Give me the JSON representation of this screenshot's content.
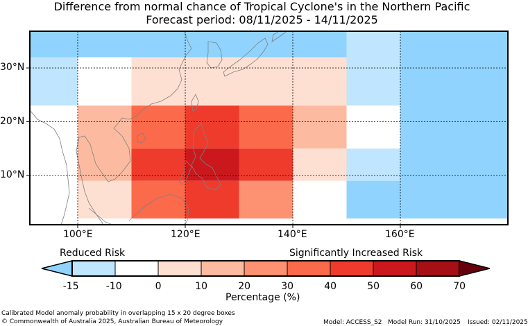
{
  "title_line1": "Difference from normal chance of Tropical Cyclone's in the Northern Pacific",
  "title_line2": "Forecast period: 08/11/2025 - 14/11/2025",
  "lat_labels": [
    "30°N",
    "20°N",
    "10°N"
  ],
  "lon_labels": [
    "100°E",
    "120°E",
    "140°E",
    "160°E"
  ],
  "legend": {
    "reduced_label": "Reduced Risk",
    "increased_label": "Significantly Increased Risk",
    "ticks": [
      "-15",
      "-10",
      "0",
      "10",
      "20",
      "30",
      "40",
      "50",
      "60",
      "70"
    ],
    "xlabel": "Percentage (%)",
    "colors": [
      "#8fd3fe",
      "#c0e5fe",
      "#ffffff",
      "#fee0d2",
      "#fcbba1",
      "#fc9272",
      "#fb6a4a",
      "#ef3b2c",
      "#cb181d",
      "#a50f15",
      "#67000d"
    ]
  },
  "grid_cells": [
    {
      "lon": [
        90,
        150
      ],
      "lat": [
        32,
        37
      ],
      "value": -15
    },
    {
      "lon": [
        90,
        100
      ],
      "lat": [
        23,
        32
      ],
      "value": -10
    },
    {
      "lon": [
        100,
        110
      ],
      "lat": [
        23,
        32
      ],
      "value": 0
    },
    {
      "lon": [
        110,
        150
      ],
      "lat": [
        23,
        32
      ],
      "value": 5
    },
    {
      "lon": [
        90,
        100
      ],
      "lat": [
        2,
        23
      ],
      "value": 0
    },
    {
      "lon": [
        100,
        110
      ],
      "lat": [
        9,
        23
      ],
      "value": 15
    },
    {
      "lon": [
        100,
        110
      ],
      "lat": [
        2,
        9
      ],
      "value": 5
    },
    {
      "lon": [
        110,
        120
      ],
      "lat": [
        15,
        23
      ],
      "value": 35
    },
    {
      "lon": [
        120,
        130
      ],
      "lat": [
        15,
        23
      ],
      "value": 45
    },
    {
      "lon": [
        130,
        140
      ],
      "lat": [
        15,
        23
      ],
      "value": 35
    },
    {
      "lon": [
        140,
        150
      ],
      "lat": [
        15,
        23
      ],
      "value": 15
    },
    {
      "lon": [
        110,
        120
      ],
      "lat": [
        9,
        15
      ],
      "value": 45
    },
    {
      "lon": [
        120,
        130
      ],
      "lat": [
        9,
        15
      ],
      "value": 55
    },
    {
      "lon": [
        130,
        140
      ],
      "lat": [
        9,
        15
      ],
      "value": 45
    },
    {
      "lon": [
        140,
        150
      ],
      "lat": [
        9,
        15
      ],
      "value": 5
    },
    {
      "lon": [
        110,
        120
      ],
      "lat": [
        2,
        9
      ],
      "value": 35
    },
    {
      "lon": [
        120,
        130
      ],
      "lat": [
        2,
        9
      ],
      "value": 45
    },
    {
      "lon": [
        130,
        140
      ],
      "lat": [
        2,
        9
      ],
      "value": 25
    },
    {
      "lon": [
        140,
        150
      ],
      "lat": [
        2,
        9
      ],
      "value": 0
    },
    {
      "lon": [
        150,
        160
      ],
      "lat": [
        23,
        37
      ],
      "value": -10
    },
    {
      "lon": [
        150,
        160
      ],
      "lat": [
        15,
        23
      ],
      "value": 0
    },
    {
      "lon": [
        150,
        160
      ],
      "lat": [
        9,
        15
      ],
      "value": -10
    },
    {
      "lon": [
        150,
        160
      ],
      "lat": [
        2,
        9
      ],
      "value": -15
    },
    {
      "lon": [
        160,
        180
      ],
      "lat": [
        2,
        37
      ],
      "value": -15
    }
  ],
  "footer_left1": "Calibrated Model anomaly probability in overlapping 15 x 20 degree boxes",
  "footer_left2": "© Commonwealth of Australia 2025, Australian Bureau of Meteorology",
  "footer_model": "Model: ACCESS_S2",
  "footer_run": "Model Run: 31/10/2025",
  "footer_issued": "Issued: 02/11/2025"
}
